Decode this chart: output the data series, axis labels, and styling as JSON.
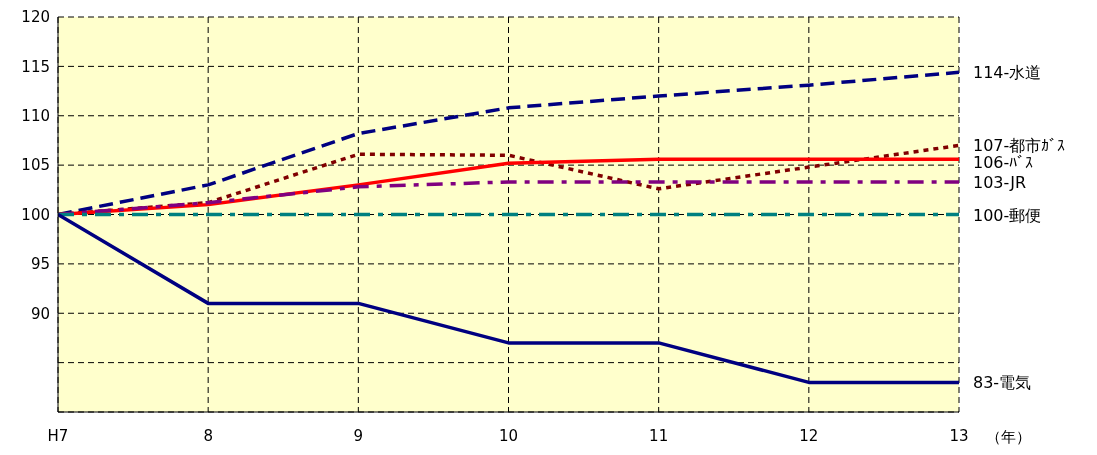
{
  "chart_data": {
    "type": "line",
    "categories": [
      "H7",
      "8",
      "9",
      "10",
      "11",
      "12",
      "13"
    ],
    "xlabel": "（年）",
    "ylim": [
      80,
      120
    ],
    "yticks": [
      {
        "value": 80,
        "label": null
      },
      {
        "value": 85,
        "label": null
      },
      90,
      95,
      100,
      105,
      110,
      115,
      120
    ],
    "grid": true,
    "marker": "none",
    "series": [
      {
        "name": "114-水道",
        "color": "#000080",
        "line_style": "dashed",
        "values": [
          100,
          103,
          108.2,
          110.8,
          112,
          113.1,
          114.4
        ]
      },
      {
        "name": "107-都市ｶﾞｽ",
        "color": "#800000",
        "line_style": "dotted",
        "values": [
          100,
          101.2,
          106.1,
          106,
          102.6,
          104.8,
          107
        ]
      },
      {
        "name": "106-ﾊﾞｽ",
        "color": "#ff0000",
        "line_style": "solid",
        "values": [
          100,
          101,
          103,
          105.2,
          105.6,
          105.6,
          105.6
        ]
      },
      {
        "name": "103-JR",
        "color": "#800080",
        "line_style": "dashdot",
        "values": [
          100,
          101.2,
          102.8,
          103.3,
          103.3,
          103.3,
          103.3
        ]
      },
      {
        "name": "100-郵便",
        "color": "#008080",
        "line_style": "dashdot",
        "values": [
          100,
          100,
          100,
          100,
          100,
          100,
          100
        ]
      },
      {
        "name": "83-電気",
        "color": "#000080",
        "line_style": "solid",
        "values": [
          100,
          91,
          91,
          87,
          87,
          83,
          83
        ]
      }
    ]
  }
}
